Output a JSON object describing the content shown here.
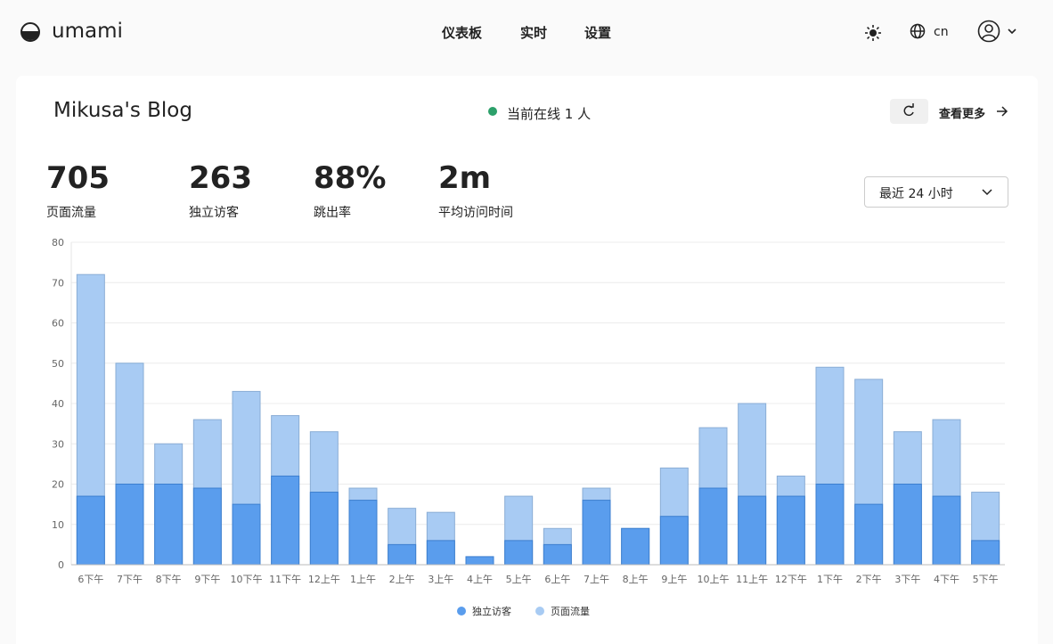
{
  "nav": {
    "logo": "umami",
    "links": [
      "仪表板",
      "实时",
      "设置"
    ],
    "lang": "cn"
  },
  "header": {
    "title": "Mikusa's Blog",
    "online": "当前在线 1 人",
    "more": "查看更多"
  },
  "metrics": [
    {
      "value": 705,
      "label": "页面流量"
    },
    {
      "value": 263,
      "label": "独立访客"
    },
    {
      "value": "88%",
      "label": "跳出率"
    },
    {
      "value": "2m",
      "label": "平均访问时间"
    }
  ],
  "date_range": "最近 24 小时",
  "chart_data": {
    "type": "bar",
    "categories": [
      "6下午",
      "7下午",
      "8下午",
      "9下午",
      "10下午",
      "11下午",
      "12上午",
      "1上午",
      "2上午",
      "3上午",
      "4上午",
      "5上午",
      "6上午",
      "7上午",
      "8上午",
      "9上午",
      "10上午",
      "11上午",
      "12下午",
      "1下午",
      "2下午",
      "3下午",
      "4下午",
      "5下午"
    ],
    "series": [
      {
        "name": "独立访客",
        "color": "#5a9ded",
        "values": [
          17,
          20,
          20,
          19,
          15,
          22,
          18,
          16,
          5,
          6,
          2,
          6,
          5,
          16,
          9,
          12,
          19,
          17,
          17,
          20,
          15,
          20,
          17,
          6
        ]
      },
      {
        "name": "页面流量",
        "color": "#a8cbf3",
        "values": [
          72,
          50,
          30,
          36,
          43,
          37,
          33,
          19,
          14,
          13,
          2,
          17,
          9,
          19,
          9,
          24,
          34,
          40,
          22,
          49,
          46,
          33,
          36,
          18
        ]
      }
    ],
    "ylim": [
      0,
      80
    ],
    "yticks": [
      0,
      10,
      20,
      30,
      40,
      50,
      60,
      70,
      80
    ],
    "grid": true
  }
}
